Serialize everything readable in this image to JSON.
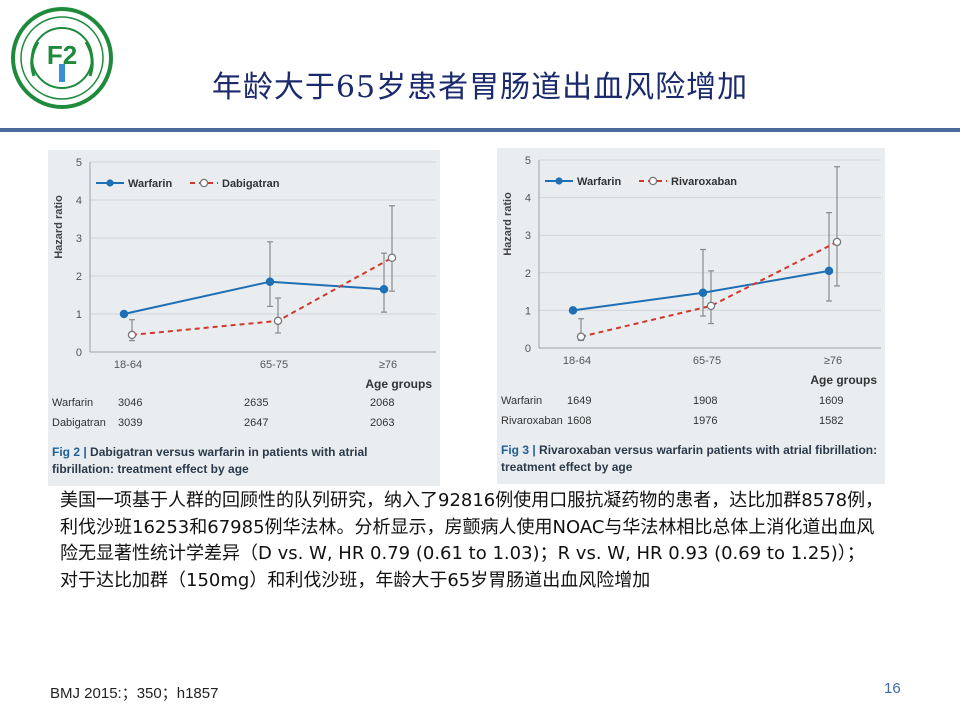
{
  "slide": {
    "title": "年龄大于65岁患者胃肠道出血风险增加",
    "paragraphs": [
      "美国一项基于人群的回顾性的队列研究，纳入了92816例使用口服抗凝药物的患者，达比加群8578例，利伐沙班16253和67985例华法林。分析显示，房颤病人使用NOAC与华法林相比总体上消化道出血风险无显著性统计学差异（D vs. W, HR 0.79 (0.61 to 1.03)；R vs. W, HR 0.93 (0.69 to 1.25)）；",
      "对于达比加群（150mg）和利伐沙班，年龄大于65岁胃肠道出血风险增加"
    ],
    "citation": "BMJ 2015:；350；h1857",
    "page_number": "16"
  },
  "logo": {
    "text": "F2",
    "color": "#1e8a3c",
    "accent": "#3a8fd6"
  },
  "colors": {
    "warfarin": "#1f6fb5",
    "comparator": "#d0372d",
    "ci": "#8a8a8a",
    "panel": "#e9edf0",
    "axis_text": "#555555"
  },
  "chart_data": [
    {
      "type": "line",
      "ylabel": "Hazard ratio",
      "xlabel": "Age groups",
      "categories": [
        "18-64",
        "65-75",
        "≥76"
      ],
      "ylim": [
        0,
        5
      ],
      "yticks": [
        0,
        1,
        2,
        3,
        4,
        5
      ],
      "grid": true,
      "legend": "top-left",
      "series": [
        {
          "name": "Warfarin",
          "style": "solid",
          "values": [
            1.0,
            1.85,
            1.65
          ],
          "ci_low": [
            1.0,
            1.2,
            1.05
          ],
          "ci_high": [
            1.0,
            2.9,
            2.6
          ]
        },
        {
          "name": "Dabigatran",
          "style": "dashed",
          "values": [
            0.45,
            0.82,
            2.48
          ],
          "ci_low": [
            0.3,
            0.5,
            1.6
          ],
          "ci_high": [
            0.85,
            1.42,
            3.85
          ]
        }
      ],
      "table": {
        "rows": [
          {
            "label": "Warfarin",
            "values": [
              "3046",
              "2635",
              "2068"
            ]
          },
          {
            "label": "Dabigatran",
            "values": [
              "3039",
              "2647",
              "2063"
            ]
          }
        ]
      },
      "caption": {
        "label": "Fig 2 |",
        "text": "Dabigatran versus warfarin in patients with atrial fibrillation: treatment effect by age"
      }
    },
    {
      "type": "line",
      "ylabel": "Hazard ratio",
      "xlabel": "Age groups",
      "categories": [
        "18-64",
        "65-75",
        "≥76"
      ],
      "ylim": [
        0,
        5
      ],
      "yticks": [
        0,
        1,
        2,
        3,
        4,
        5
      ],
      "grid": true,
      "legend": "top-left",
      "series": [
        {
          "name": "Warfarin",
          "style": "solid",
          "values": [
            1.0,
            1.47,
            2.05
          ],
          "ci_low": [
            1.0,
            0.85,
            1.25
          ],
          "ci_high": [
            1.0,
            2.62,
            3.6
          ]
        },
        {
          "name": "Rivaroxaban",
          "style": "dashed",
          "values": [
            0.3,
            1.12,
            2.82
          ],
          "ci_low": [
            0.2,
            0.65,
            1.65
          ],
          "ci_high": [
            0.78,
            2.05,
            4.82
          ]
        }
      ],
      "table": {
        "rows": [
          {
            "label": "Warfarin",
            "values": [
              "1649",
              "1908",
              "1609"
            ]
          },
          {
            "label": "Rivaroxaban",
            "values": [
              "1608",
              "1976",
              "1582"
            ]
          }
        ]
      },
      "caption": {
        "label": "Fig 3 |",
        "text": "Rivaroxaban versus warfarin patients with atrial fibrillation: treatment effect by age"
      }
    }
  ]
}
